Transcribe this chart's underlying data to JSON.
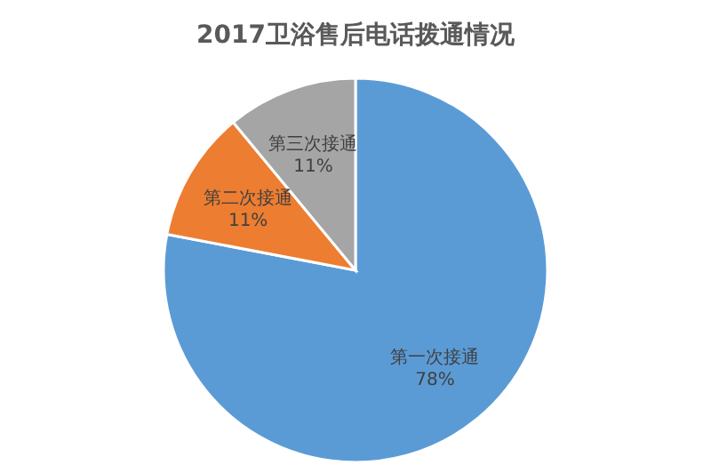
{
  "chart_data": {
    "type": "pie",
    "title": "2017卫浴售后电话拨通情况",
    "categories": [
      "第一次接通",
      "第二次接通",
      "第三次接通"
    ],
    "values": [
      78,
      11,
      11
    ],
    "value_labels": [
      "78%",
      "11%",
      "11%"
    ],
    "colors": [
      "#5b9bd5",
      "#ed7d31",
      "#a5a5a5"
    ]
  }
}
